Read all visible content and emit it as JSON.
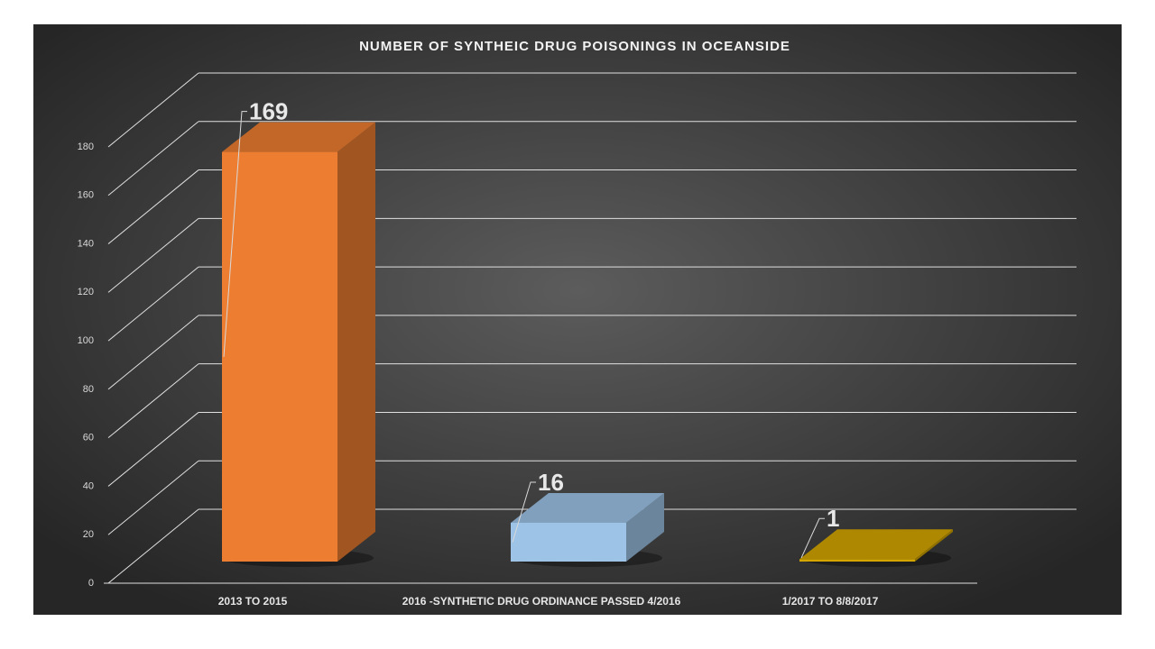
{
  "chart_data": {
    "type": "bar3d",
    "title": "NUMBER OF SYNTHEIC DRUG POISONINGS IN OCEANSIDE",
    "categories": [
      "2013 TO 2015",
      "2016 -SYNTHETIC DRUG ORDINANCE PASSED 4/2016",
      "1/2017 TO 8/8/2017"
    ],
    "values": [
      169,
      16,
      1
    ],
    "colors": [
      "#ed7d31",
      "#9dc3e6",
      "#d4a600"
    ],
    "ylim": [
      0,
      180
    ],
    "yticks": [
      0,
      20,
      40,
      60,
      80,
      100,
      120,
      140,
      160,
      180
    ],
    "grid": true
  }
}
